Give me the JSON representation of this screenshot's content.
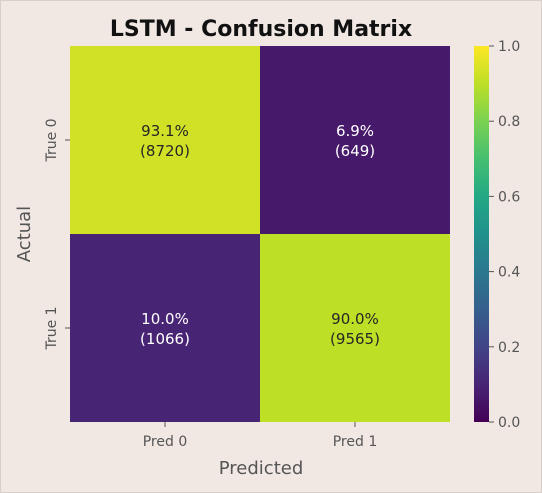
{
  "chart_data": {
    "type": "heatmap",
    "title": "LSTM - Confusion Matrix",
    "xlabel": "Predicted",
    "ylabel": "Actual",
    "x_categories": [
      "Pred 0",
      "Pred 1"
    ],
    "y_categories": [
      "True 0",
      "True 1"
    ],
    "values": [
      [
        0.931,
        0.069
      ],
      [
        0.1,
        0.9
      ]
    ],
    "counts": [
      [
        8720,
        649
      ],
      [
        1066,
        9565
      ]
    ],
    "cell_labels": [
      [
        {
          "pct": "93.1%",
          "count": "(8720)"
        },
        {
          "pct": "6.9%",
          "count": "(649)"
        }
      ],
      [
        {
          "pct": "10.0%",
          "count": "(1066)"
        },
        {
          "pct": "90.0%",
          "count": "(9565)"
        }
      ]
    ],
    "colormap": "viridis",
    "colorbar": {
      "range": [
        0.0,
        1.0
      ],
      "ticks": [
        "0.0",
        "0.2",
        "0.4",
        "0.6",
        "0.8",
        "1.0"
      ]
    },
    "colors": {
      "background": "#f1e8e4",
      "viridis_low": "#440154",
      "viridis_high": "#fde725"
    }
  }
}
